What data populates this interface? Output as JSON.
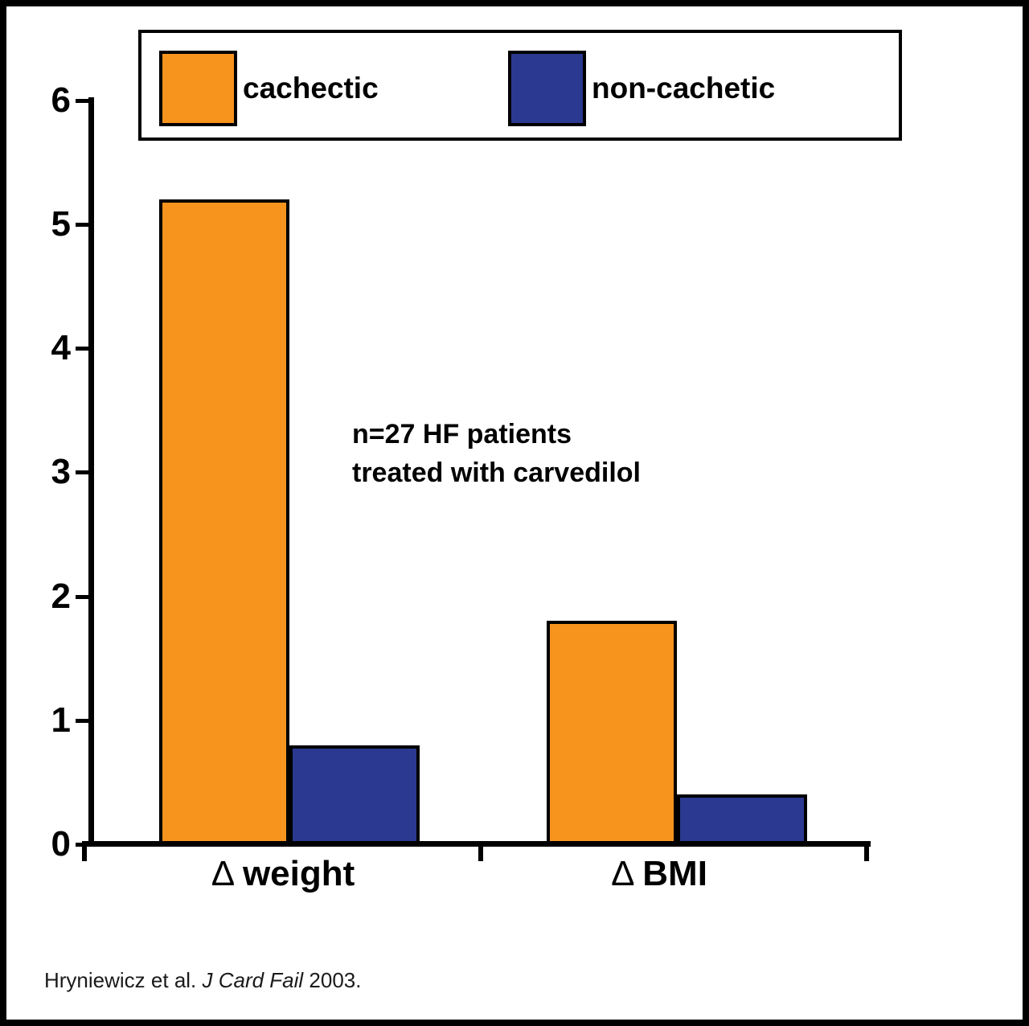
{
  "chart_data": {
    "type": "bar",
    "categories": [
      {
        "delta": "Δ",
        "label": "weight"
      },
      {
        "delta": "Δ",
        "label": "BMI"
      }
    ],
    "series": [
      {
        "name": "cachectic",
        "color": "#F7941E",
        "values": [
          5.2,
          1.8
        ]
      },
      {
        "name": "non-cachetic",
        "color": "#2B3990",
        "values": [
          0.8,
          0.4
        ]
      }
    ],
    "ylim": [
      0,
      6
    ],
    "yticks": [
      0,
      1,
      2,
      3,
      4,
      5,
      6
    ],
    "grid": false,
    "legend_position": "top",
    "annotation": {
      "line1": "n=27 HF patients",
      "line2": "treated with carvedilol"
    },
    "citation": {
      "prefix": "Hryniewicz et al. ",
      "italic": "J Card Fail",
      "suffix": " 2003."
    },
    "background": "#FFFFFF",
    "axis_color": "#000000"
  }
}
